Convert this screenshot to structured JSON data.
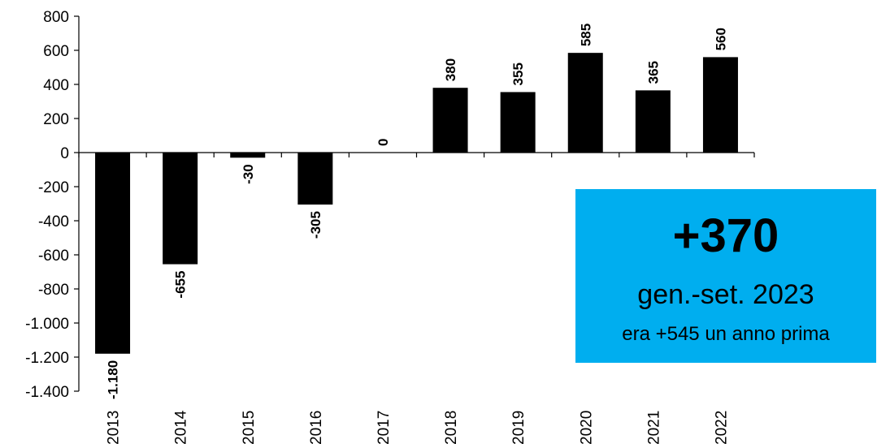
{
  "chart_data": {
    "type": "bar",
    "categories": [
      "2013",
      "2014",
      "2015",
      "2016",
      "2017",
      "2018",
      "2019",
      "2020",
      "2021",
      "2022"
    ],
    "values": [
      -1180,
      -655,
      -30,
      -305,
      0,
      380,
      355,
      585,
      365,
      560
    ],
    "data_labels": [
      "-1.180",
      "-655",
      "-30",
      "-305",
      "0",
      "380",
      "355",
      "585",
      "365",
      "560"
    ],
    "ylim": [
      -1400,
      800
    ],
    "yticks": [
      800,
      600,
      400,
      200,
      0,
      -200,
      -400,
      -600,
      -800,
      -1000,
      -1200,
      -1400
    ],
    "ytick_labels": [
      "800",
      "600",
      "400",
      "200",
      "0",
      "-200",
      "-400",
      "-600",
      "-800",
      "-1.000",
      "-1.200",
      "-1.400"
    ],
    "grid": false,
    "bar_color": "#000000"
  },
  "callout": {
    "value": "+370",
    "period": "gen.-set. 2023",
    "note": "era +545 un anno prima",
    "background": "#00aeef"
  }
}
